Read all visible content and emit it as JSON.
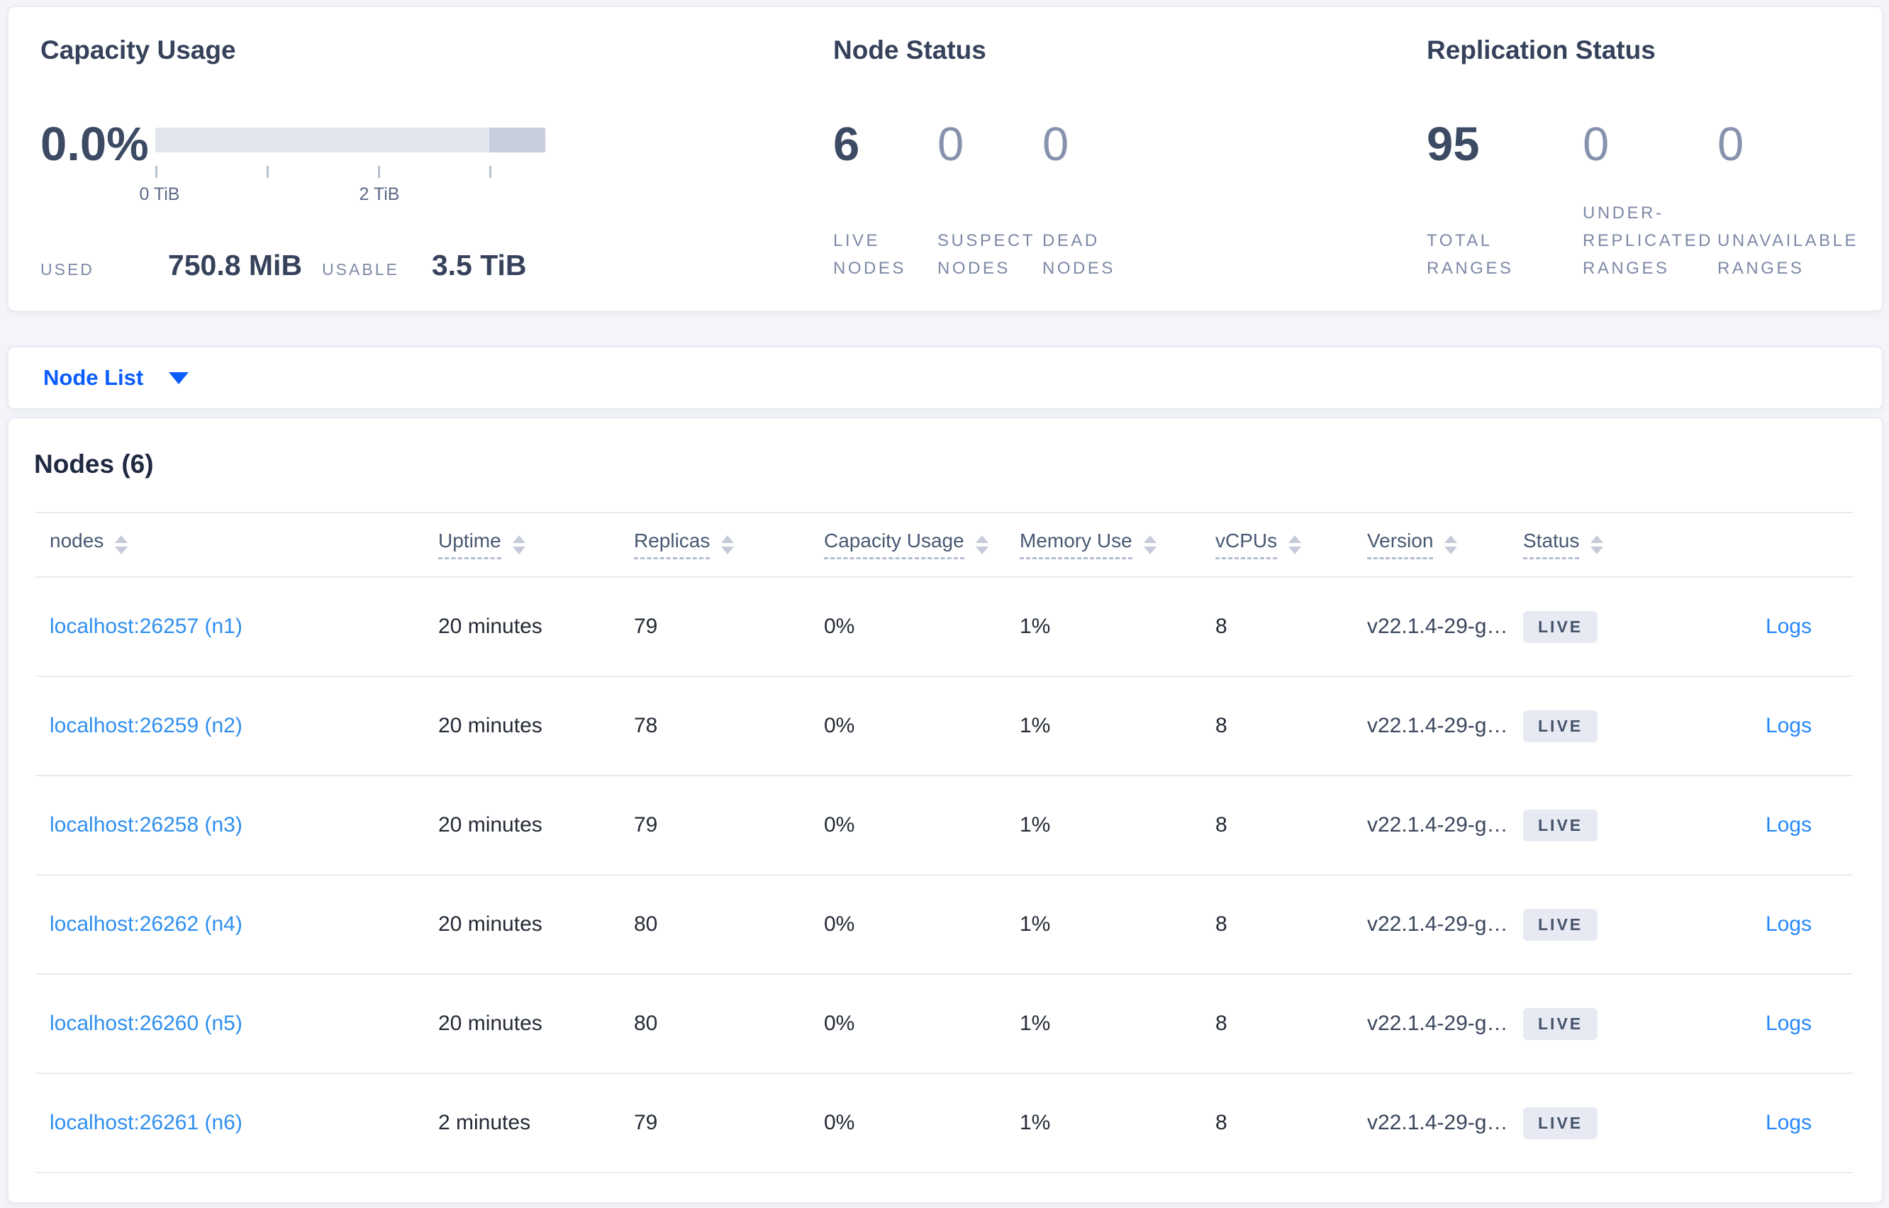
{
  "colors": {
    "page_bg": "#f4f5fa",
    "primary_blue": "#0b5cff",
    "node_link_blue": "#2f8fef",
    "logs_link_blue": "#2688fb",
    "stat_dark": "#3c4a63",
    "stat_muted": "#8792ad",
    "badge_bg": "#e7eaf2",
    "badge_text": "#44526b",
    "bar_track": "#e3e6ee",
    "bar_dark_segment": "#c7cdda"
  },
  "summary": {
    "capacity": {
      "title": "Capacity Usage",
      "percent": "0.0%",
      "ticks": [
        "0 TiB",
        "2 TiB"
      ],
      "used_label": "USED",
      "used_value": "750.8 MiB",
      "usable_label": "USABLE",
      "usable_value": "3.5 TiB"
    },
    "node_status": {
      "title": "Node Status",
      "stats": [
        {
          "value": "6",
          "label_lines": [
            "LIVE",
            "NODES"
          ]
        },
        {
          "value": "0",
          "label_lines": [
            "SUSPECT",
            "NODES"
          ]
        },
        {
          "value": "0",
          "label_lines": [
            "DEAD",
            "NODES"
          ]
        }
      ]
    },
    "replication": {
      "title": "Replication Status",
      "stats": [
        {
          "value": "95",
          "label_lines": [
            "TOTAL",
            "RANGES"
          ]
        },
        {
          "value": "0",
          "label_lines": [
            "UNDER-",
            "REPLICATED",
            "RANGES"
          ]
        },
        {
          "value": "0",
          "label_lines": [
            "UNAVAILABLE",
            "RANGES"
          ]
        }
      ]
    }
  },
  "view_selector": {
    "label": "Node List"
  },
  "table": {
    "title": "Nodes (6)",
    "columns": [
      "nodes",
      "Uptime",
      "Replicas",
      "Capacity Usage",
      "Memory Use",
      "vCPUs",
      "Version",
      "Status"
    ],
    "logs_label": "Logs",
    "rows": [
      {
        "node": "localhost:26257 (n1)",
        "uptime": "20 minutes",
        "replicas": "79",
        "capacity": "0%",
        "memory": "1%",
        "vcpus": "8",
        "version": "v22.1.4-29-g…",
        "status": "LIVE"
      },
      {
        "node": "localhost:26259 (n2)",
        "uptime": "20 minutes",
        "replicas": "78",
        "capacity": "0%",
        "memory": "1%",
        "vcpus": "8",
        "version": "v22.1.4-29-g…",
        "status": "LIVE"
      },
      {
        "node": "localhost:26258 (n3)",
        "uptime": "20 minutes",
        "replicas": "79",
        "capacity": "0%",
        "memory": "1%",
        "vcpus": "8",
        "version": "v22.1.4-29-g…",
        "status": "LIVE"
      },
      {
        "node": "localhost:26262 (n4)",
        "uptime": "20 minutes",
        "replicas": "80",
        "capacity": "0%",
        "memory": "1%",
        "vcpus": "8",
        "version": "v22.1.4-29-g…",
        "status": "LIVE"
      },
      {
        "node": "localhost:26260 (n5)",
        "uptime": "20 minutes",
        "replicas": "80",
        "capacity": "0%",
        "memory": "1%",
        "vcpus": "8",
        "version": "v22.1.4-29-g…",
        "status": "LIVE"
      },
      {
        "node": "localhost:26261 (n6)",
        "uptime": "2 minutes",
        "replicas": "79",
        "capacity": "0%",
        "memory": "1%",
        "vcpus": "8",
        "version": "v22.1.4-29-g…",
        "status": "LIVE"
      }
    ]
  }
}
